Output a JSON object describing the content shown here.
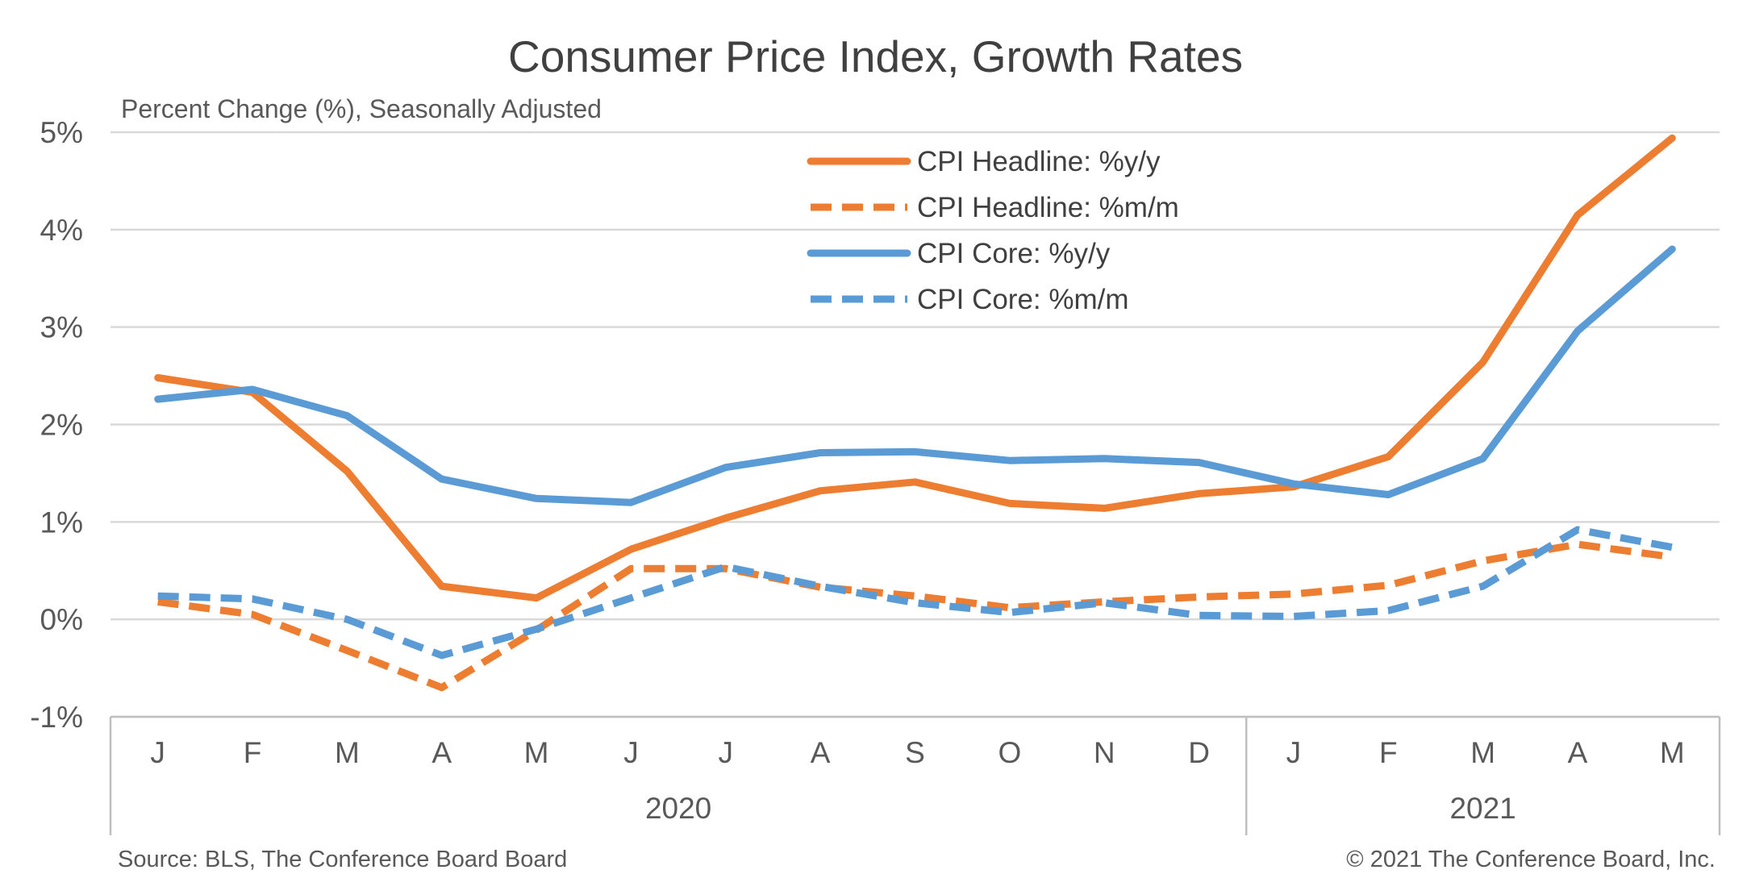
{
  "title": "Consumer Price Index, Growth Rates",
  "subtitle": "Percent Change (%), Seasonally Adjusted",
  "source": "Source: BLS, The Conference Board Board",
  "copyright": "© 2021 The Conference Board, Inc.",
  "colors": {
    "orange": "#ED7D31",
    "blue": "#5B9BD5",
    "grid": "#D9D9D9",
    "axis": "#BFBFBF"
  },
  "chart_data": {
    "type": "line",
    "categories": [
      "J",
      "F",
      "M",
      "A",
      "M",
      "J",
      "J",
      "A",
      "S",
      "O",
      "N",
      "D",
      "J",
      "F",
      "M",
      "A",
      "M"
    ],
    "year_groups": [
      {
        "label": "2020",
        "start": 0,
        "end": 11
      },
      {
        "label": "2021",
        "start": 12,
        "end": 16
      }
    ],
    "y_ticks": [
      {
        "value": 5,
        "label": "5%"
      },
      {
        "value": 4,
        "label": "4%"
      },
      {
        "value": 3,
        "label": "3%"
      },
      {
        "value": 2,
        "label": "2%"
      },
      {
        "value": 1,
        "label": "1%"
      },
      {
        "value": 0,
        "label": "0%"
      },
      {
        "value": -1,
        "label": "-1%"
      }
    ],
    "ylim": [
      -1,
      5
    ],
    "grid": true,
    "legend_position": "top-center",
    "series": [
      {
        "name": "CPI Headline:  %y/y",
        "color": "#ED7D31",
        "dash": false,
        "values": [
          2.48,
          2.33,
          1.52,
          0.34,
          0.22,
          0.72,
          1.04,
          1.32,
          1.41,
          1.19,
          1.14,
          1.29,
          1.36,
          1.67,
          2.64,
          4.15,
          4.94
        ]
      },
      {
        "name": "CPI Headline:  %m/m",
        "color": "#ED7D31",
        "dash": true,
        "values": [
          0.18,
          0.05,
          -0.32,
          -0.7,
          -0.11,
          0.52,
          0.52,
          0.33,
          0.24,
          0.12,
          0.18,
          0.23,
          0.26,
          0.35,
          0.6,
          0.77,
          0.64
        ]
      },
      {
        "name": "CPI Core:  %y/y",
        "color": "#5B9BD5",
        "dash": false,
        "values": [
          2.26,
          2.36,
          2.09,
          1.44,
          1.24,
          1.2,
          1.56,
          1.71,
          1.72,
          1.63,
          1.65,
          1.61,
          1.39,
          1.28,
          1.65,
          2.96,
          3.8
        ]
      },
      {
        "name": "CPI Core:  %m/m",
        "color": "#5B9BD5",
        "dash": true,
        "values": [
          0.24,
          0.21,
          0.0,
          -0.37,
          -0.1,
          0.22,
          0.54,
          0.34,
          0.17,
          0.07,
          0.17,
          0.04,
          0.03,
          0.09,
          0.34,
          0.92,
          0.74
        ]
      }
    ]
  }
}
